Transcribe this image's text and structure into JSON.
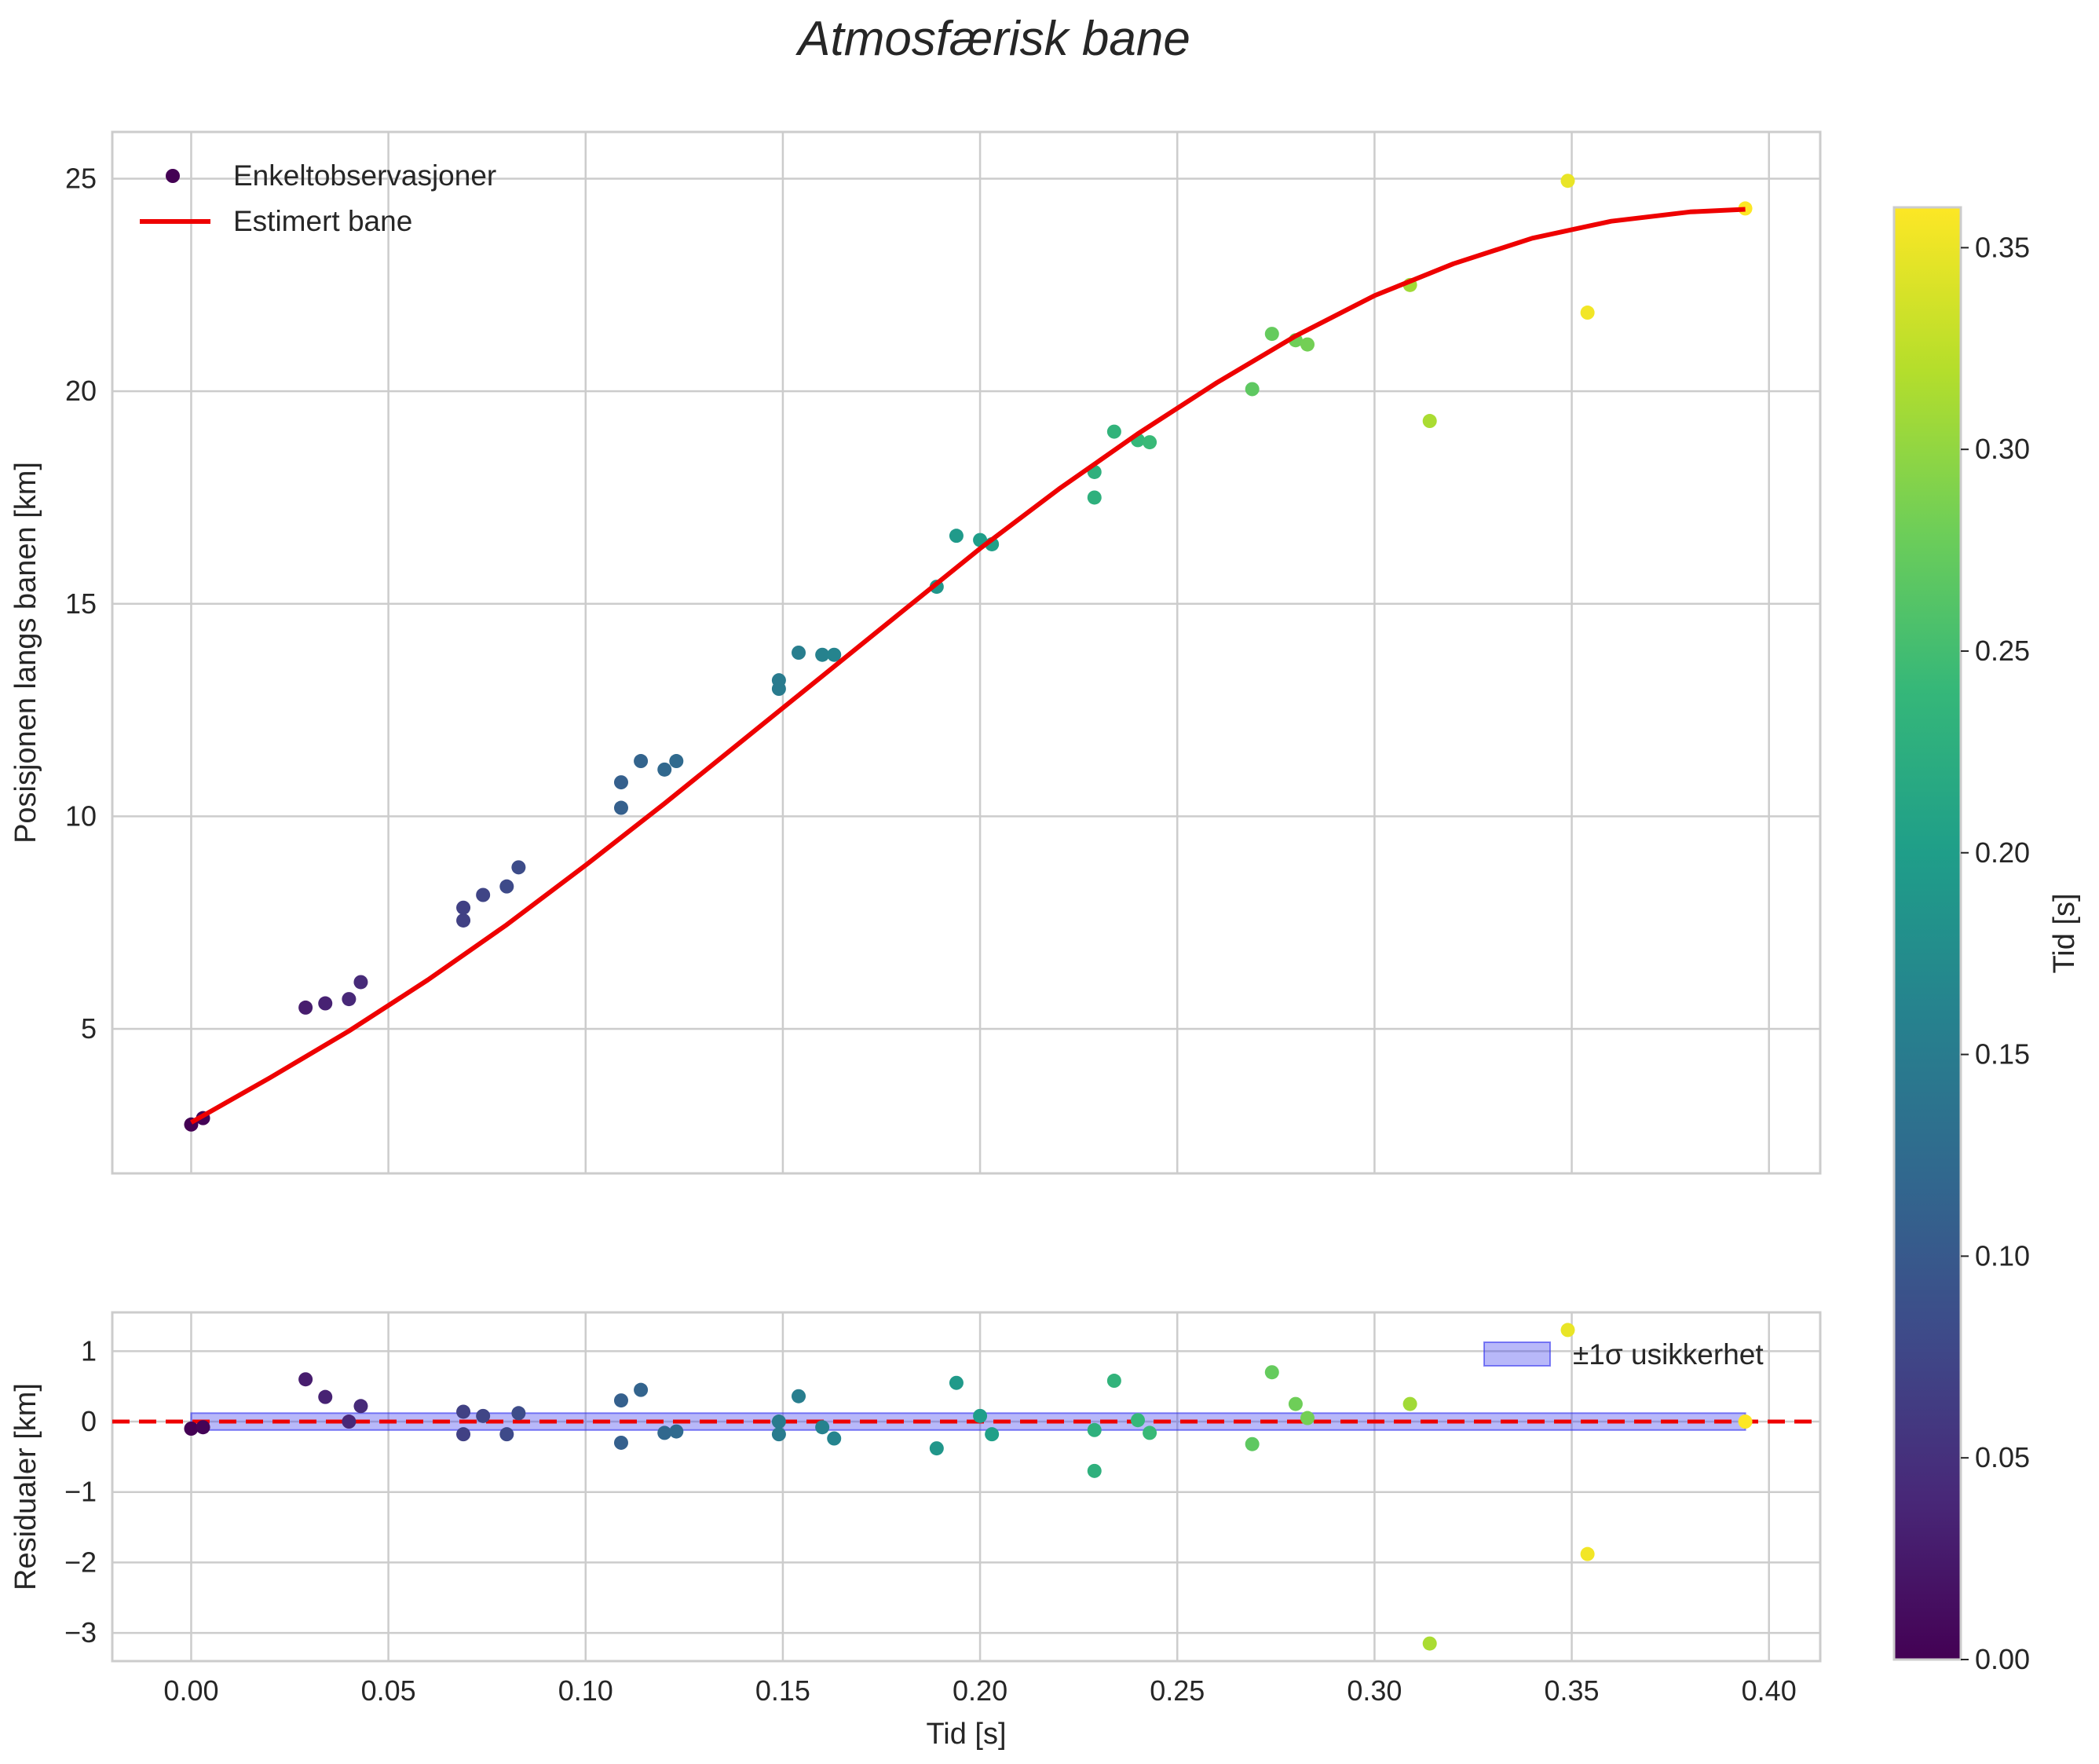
{
  "chart_data": [
    {
      "type": "scatter",
      "title": "Atmosfærisk bane",
      "xlabel": "",
      "ylabel": "Posisjonen langs banen [km]",
      "xlim": [
        -0.02,
        0.413
      ],
      "ylim": [
        1.6,
        26.1
      ],
      "xticks": [
        0.0,
        0.05,
        0.1,
        0.15,
        0.2,
        0.25,
        0.3,
        0.35,
        0.4
      ],
      "yticks": [
        5,
        10,
        15,
        20,
        25
      ],
      "ytick_labels": [
        "5",
        "10",
        "15",
        "20",
        "25"
      ],
      "grid": true,
      "legend": {
        "location": "top-left",
        "entries": [
          "Enkeltobservasjoner",
          "Estimert bane"
        ]
      },
      "series": [
        {
          "name": "Enkeltobservasjoner",
          "kind": "scatter",
          "color_by": "x",
          "x": [
            0.0,
            0.003,
            0.029,
            0.034,
            0.04,
            0.043,
            0.069,
            0.069,
            0.074,
            0.08,
            0.083,
            0.109,
            0.109,
            0.114,
            0.12,
            0.123,
            0.149,
            0.149,
            0.154,
            0.16,
            0.163,
            0.189,
            0.194,
            0.2,
            0.203,
            0.229,
            0.229,
            0.234,
            0.24,
            0.243,
            0.269,
            0.274,
            0.28,
            0.283,
            0.309,
            0.314,
            0.349,
            0.354,
            0.394
          ],
          "y": [
            2.75,
            2.9,
            5.5,
            5.6,
            5.7,
            6.1,
            7.55,
            7.85,
            8.15,
            8.35,
            8.8,
            10.2,
            10.8,
            11.3,
            11.1,
            11.3,
            13.0,
            13.2,
            13.85,
            13.8,
            13.8,
            15.4,
            16.6,
            16.5,
            16.4,
            17.5,
            18.1,
            19.05,
            18.85,
            18.8,
            20.05,
            21.35,
            21.2,
            21.1,
            22.5,
            19.3,
            24.95,
            21.85,
            24.3
          ]
        },
        {
          "name": "Estimert bane",
          "kind": "line",
          "color": "#ee0000",
          "x": [
            0.0,
            0.02,
            0.04,
            0.06,
            0.08,
            0.1,
            0.12,
            0.14,
            0.16,
            0.18,
            0.2,
            0.22,
            0.24,
            0.26,
            0.28,
            0.3,
            0.32,
            0.34,
            0.36,
            0.38,
            0.394
          ],
          "y": [
            2.8,
            3.85,
            4.95,
            6.15,
            7.45,
            8.85,
            10.3,
            11.8,
            13.3,
            14.8,
            16.3,
            17.7,
            19.0,
            20.2,
            21.3,
            22.25,
            23.0,
            23.6,
            24.0,
            24.22,
            24.28
          ]
        }
      ]
    },
    {
      "type": "scatter",
      "title": "",
      "xlabel": "Tid [s]",
      "ylabel": "Residualer [km]",
      "xlim": [
        -0.02,
        0.413
      ],
      "ylim": [
        -3.4,
        1.55
      ],
      "xticks": [
        0.0,
        0.05,
        0.1,
        0.15,
        0.2,
        0.25,
        0.3,
        0.35,
        0.4
      ],
      "xtick_labels": [
        "0.00",
        "0.05",
        "0.10",
        "0.15",
        "0.20",
        "0.25",
        "0.30",
        "0.35",
        "0.40"
      ],
      "yticks": [
        1,
        0,
        -1,
        -2,
        -3
      ],
      "ytick_labels": [
        "1",
        "0",
        "−1",
        "−2",
        "−3"
      ],
      "grid": true,
      "legend": {
        "location": "top-right",
        "entries": [
          "±1σ usikkerhet"
        ]
      },
      "band": {
        "name": "±1σ usikkerhet",
        "color": "#3333ee",
        "x": [
          0.0,
          0.394
        ],
        "lower": -0.12,
        "upper": 0.12
      },
      "reference_line": {
        "y": 0,
        "color": "#ee0000",
        "style": "dashed"
      },
      "series": [
        {
          "name": "Residualer",
          "kind": "scatter",
          "color_by": "x",
          "x": [
            0.0,
            0.003,
            0.029,
            0.034,
            0.04,
            0.043,
            0.069,
            0.069,
            0.074,
            0.08,
            0.083,
            0.109,
            0.109,
            0.114,
            0.12,
            0.123,
            0.149,
            0.149,
            0.154,
            0.16,
            0.163,
            0.189,
            0.194,
            0.2,
            0.203,
            0.229,
            0.229,
            0.234,
            0.24,
            0.243,
            0.269,
            0.274,
            0.28,
            0.283,
            0.309,
            0.314,
            0.349,
            0.354,
            0.394
          ],
          "y": [
            -0.1,
            -0.08,
            0.6,
            0.35,
            0.0,
            0.22,
            -0.18,
            0.14,
            0.08,
            -0.18,
            0.12,
            -0.3,
            0.3,
            0.45,
            -0.16,
            -0.14,
            -0.18,
            0.0,
            0.36,
            -0.08,
            -0.24,
            -0.38,
            0.55,
            0.08,
            -0.18,
            -0.7,
            -0.12,
            0.58,
            0.02,
            -0.16,
            -0.32,
            0.7,
            0.25,
            0.05,
            0.25,
            -3.15,
            1.3,
            -1.88,
            0.0
          ]
        }
      ]
    }
  ],
  "colorbar": {
    "label": "Tid [s]",
    "range": [
      0.0,
      0.36
    ],
    "ticks": [
      0.0,
      0.05,
      0.1,
      0.15,
      0.2,
      0.25,
      0.3,
      0.35
    ],
    "tick_labels": [
      "0.00",
      "0.05",
      "0.10",
      "0.15",
      "0.20",
      "0.25",
      "0.30",
      "0.35"
    ],
    "colormap": [
      "#440154",
      "#482878",
      "#3e4a89",
      "#31688e",
      "#26828e",
      "#1f9e89",
      "#35b779",
      "#6ece58",
      "#b5de2b",
      "#fde725"
    ]
  }
}
